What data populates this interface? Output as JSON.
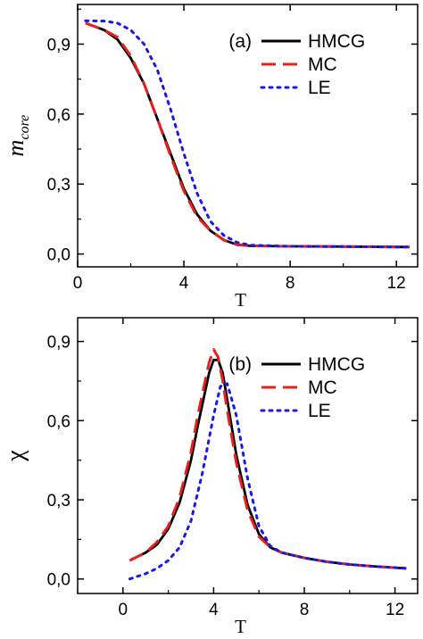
{
  "chart_data": [
    {
      "type": "line",
      "panel_label": "(a)",
      "xlabel": "T",
      "ylabel": "m",
      "ylabel_sub": "core",
      "xlim": [
        0,
        12.8
      ],
      "ylim": [
        -0.055,
        1.07
      ],
      "xticks": [
        0,
        4,
        8,
        12
      ],
      "xtick_labels": [
        "0",
        "4",
        "8",
        "12"
      ],
      "yticks": [
        0.0,
        0.3,
        0.6,
        0.9
      ],
      "ytick_labels": [
        "0,0",
        "0,3",
        "0,6",
        "0,9"
      ],
      "grid": false,
      "legend_position": "top-right",
      "series": [
        {
          "name": "HMCG",
          "color": "#000000",
          "dash": "solid",
          "x": [
            0.3,
            1.0,
            1.5,
            2.0,
            2.5,
            3.0,
            3.5,
            4.0,
            4.5,
            5.0,
            5.5,
            6.0,
            6.5,
            8.0,
            10.0,
            12.5
          ],
          "y": [
            0.99,
            0.96,
            0.92,
            0.84,
            0.73,
            0.58,
            0.43,
            0.28,
            0.17,
            0.1,
            0.06,
            0.04,
            0.035,
            0.033,
            0.032,
            0.03
          ]
        },
        {
          "name": "MC",
          "color": "#e8201c",
          "dash": "dashed",
          "x": [
            0.3,
            1.0,
            1.5,
            2.0,
            2.5,
            3.0,
            3.5,
            4.0,
            4.5,
            5.0,
            5.5,
            6.0,
            6.5,
            8.0,
            10.0,
            12.5
          ],
          "y": [
            0.99,
            0.96,
            0.93,
            0.85,
            0.73,
            0.58,
            0.42,
            0.27,
            0.16,
            0.1,
            0.06,
            0.04,
            0.035,
            0.033,
            0.032,
            0.03
          ]
        },
        {
          "name": "LE",
          "color": "#1a1ae6",
          "dash": "dotted",
          "x": [
            0.3,
            1.0,
            1.5,
            2.0,
            2.5,
            3.0,
            3.5,
            4.0,
            4.5,
            5.0,
            5.5,
            6.0,
            6.5,
            8.0,
            10.0,
            12.5
          ],
          "y": [
            1.0,
            0.999,
            0.99,
            0.96,
            0.9,
            0.79,
            0.62,
            0.43,
            0.26,
            0.14,
            0.08,
            0.05,
            0.038,
            0.033,
            0.032,
            0.03
          ]
        }
      ]
    },
    {
      "type": "line",
      "panel_label": "(b)",
      "xlabel": "T",
      "ylabel": "χ",
      "ylabel_sub": "",
      "xlim": [
        -2.0,
        13.0
      ],
      "ylim": [
        -0.055,
        0.99
      ],
      "xticks": [
        0,
        4,
        8,
        12
      ],
      "xtick_labels": [
        "0",
        "4",
        "8",
        "12"
      ],
      "yticks": [
        0.0,
        0.3,
        0.6,
        0.9
      ],
      "ytick_labels": [
        "0,0",
        "0,3",
        "0,6",
        "0,9"
      ],
      "grid": false,
      "legend_position": "top-right",
      "series": [
        {
          "name": "HMCG",
          "color": "#000000",
          "dash": "solid",
          "x": [
            0.3,
            1.0,
            1.5,
            2.0,
            2.5,
            3.0,
            3.3,
            3.6,
            3.8,
            4.0,
            4.2,
            4.4,
            4.6,
            5.0,
            5.5,
            6.0,
            6.5,
            7.0,
            8.0,
            9.0,
            10.0,
            11.0,
            12.5
          ],
          "y": [
            0.07,
            0.1,
            0.13,
            0.19,
            0.29,
            0.45,
            0.58,
            0.7,
            0.78,
            0.83,
            0.83,
            0.78,
            0.68,
            0.47,
            0.28,
            0.17,
            0.12,
            0.1,
            0.08,
            0.065,
            0.055,
            0.048,
            0.04
          ]
        },
        {
          "name": "MC",
          "color": "#e8201c",
          "dash": "dashed",
          "x": [
            0.3,
            1.0,
            1.5,
            2.0,
            2.5,
            3.0,
            3.3,
            3.6,
            3.8,
            4.0,
            4.2,
            4.4,
            4.6,
            5.0,
            5.5,
            6.0,
            6.5,
            7.0,
            8.0,
            9.0,
            10.0,
            11.0,
            12.5
          ],
          "y": [
            0.07,
            0.1,
            0.14,
            0.2,
            0.31,
            0.48,
            0.62,
            0.74,
            0.82,
            0.87,
            0.84,
            0.75,
            0.64,
            0.44,
            0.26,
            0.16,
            0.12,
            0.1,
            0.08,
            0.065,
            0.055,
            0.048,
            0.04
          ]
        },
        {
          "name": "LE",
          "color": "#1a1ae6",
          "dash": "dotted",
          "x": [
            0.3,
            1.0,
            1.5,
            2.0,
            2.5,
            3.0,
            3.5,
            4.0,
            4.3,
            4.6,
            5.0,
            5.5,
            6.0,
            6.5,
            7.0,
            8.0,
            9.0,
            10.0,
            11.0,
            12.5
          ],
          "y": [
            0.0,
            0.02,
            0.04,
            0.07,
            0.12,
            0.22,
            0.4,
            0.62,
            0.73,
            0.74,
            0.62,
            0.38,
            0.2,
            0.125,
            0.1,
            0.08,
            0.065,
            0.055,
            0.048,
            0.04
          ]
        }
      ]
    }
  ]
}
